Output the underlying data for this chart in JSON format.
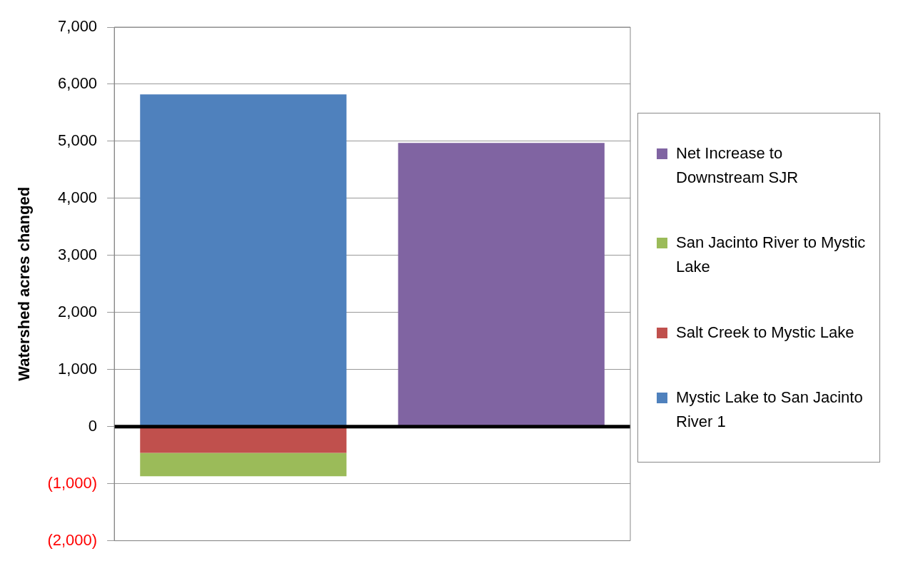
{
  "chart_data": {
    "type": "bar",
    "stacked": true,
    "ylabel": "Watershed acres changed",
    "categories": [
      null,
      null
    ],
    "series": [
      {
        "name": "Mystic Lake to San Jacinto River 1",
        "color": "#4f81bd",
        "values": [
          5820,
          null
        ]
      },
      {
        "name": "Salt Creek to Mystic Lake",
        "color": "#c0504d",
        "values": [
          -460,
          null
        ]
      },
      {
        "name": "San Jacinto River to Mystic Lake",
        "color": "#9bbb59",
        "values": [
          -410,
          null
        ]
      },
      {
        "name": "Net Increase to Downstream SJR",
        "color": "#8064a2",
        "values": [
          null,
          4970
        ]
      }
    ],
    "ylim": [
      -2000,
      7000
    ],
    "yticks": [
      {
        "value": -2000,
        "label": "(2,000)"
      },
      {
        "value": -1000,
        "label": "(1,000)"
      },
      {
        "value": 0,
        "label": "0"
      },
      {
        "value": 1000,
        "label": "1,000"
      },
      {
        "value": 2000,
        "label": "2,000"
      },
      {
        "value": 3000,
        "label": "3,000"
      },
      {
        "value": 4000,
        "label": "4,000"
      },
      {
        "value": 5000,
        "label": "5,000"
      },
      {
        "value": 6000,
        "label": "6,000"
      },
      {
        "value": 7000,
        "label": "7,000"
      }
    ],
    "ref_lines": [
      {
        "axis": "y",
        "value": 0,
        "color": "#000000"
      }
    ],
    "grid": "y",
    "legend": "right"
  }
}
